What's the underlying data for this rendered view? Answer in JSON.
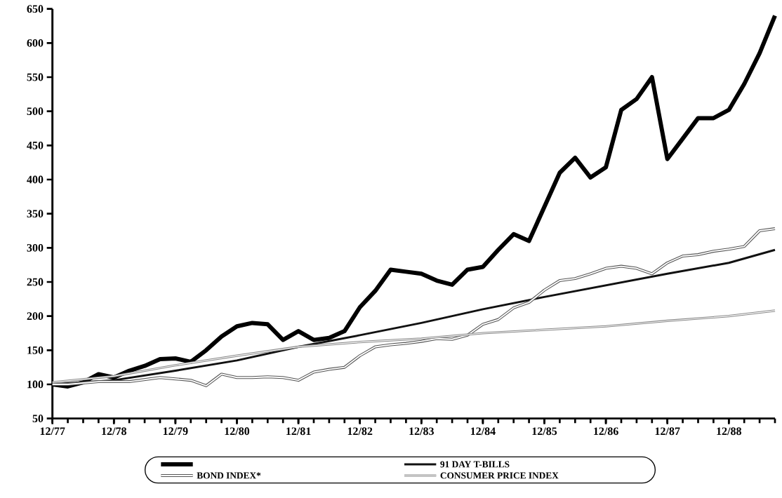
{
  "chart_data": {
    "type": "line",
    "xlim": [
      "1977-12",
      "1989-09"
    ],
    "ylim": [
      50,
      650
    ],
    "xticks": [
      {
        "value": "1977-12",
        "label": "12/77"
      },
      {
        "value": "1978-12",
        "label": "12/78"
      },
      {
        "value": "1979-12",
        "label": "12/79"
      },
      {
        "value": "1980-12",
        "label": "12/80"
      },
      {
        "value": "1981-12",
        "label": "12/81"
      },
      {
        "value": "1982-12",
        "label": "12/82"
      },
      {
        "value": "1983-12",
        "label": "12/83"
      },
      {
        "value": "1984-12",
        "label": "12/84"
      },
      {
        "value": "1985-12",
        "label": "12/85"
      },
      {
        "value": "1986-12",
        "label": "12/86"
      },
      {
        "value": "1987-12",
        "label": "12/87"
      },
      {
        "value": "1988-12",
        "label": "12/88"
      }
    ],
    "yticks": [
      50,
      100,
      150,
      200,
      250,
      300,
      350,
      400,
      450,
      500,
      550,
      600,
      650
    ],
    "legend": "bottom",
    "marker": "none",
    "x": [
      "1977-12",
      "1978-03",
      "1978-06",
      "1978-09",
      "1978-12",
      "1979-03",
      "1979-06",
      "1979-09",
      "1979-12",
      "1980-03",
      "1980-06",
      "1980-09",
      "1980-12",
      "1981-03",
      "1981-06",
      "1981-09",
      "1981-12",
      "1982-03",
      "1982-06",
      "1982-09",
      "1982-12",
      "1983-03",
      "1983-06",
      "1983-09",
      "1983-12",
      "1984-03",
      "1984-06",
      "1984-09",
      "1984-12",
      "1985-03",
      "1985-06",
      "1985-09",
      "1985-12",
      "1986-03",
      "1986-06",
      "1986-09",
      "1986-12",
      "1987-03",
      "1987-06",
      "1987-09",
      "1987-12",
      "1988-03",
      "1988-06",
      "1988-09",
      "1988-12",
      "1989-03",
      "1989-06",
      "1989-09"
    ],
    "series": [
      {
        "color": "#000000",
        "values": [
          100,
          97,
          103,
          115,
          110,
          120,
          127,
          137,
          138,
          133,
          150,
          170,
          185,
          190,
          188,
          165,
          178,
          165,
          168,
          178,
          213,
          237,
          268,
          265,
          262,
          252,
          246,
          268,
          272,
          297,
          320,
          310,
          360,
          410,
          432,
          403,
          418,
          502,
          518,
          550,
          430,
          460,
          490,
          490,
          502,
          540,
          585,
          640
        ]
      },
      {
        "name": "91 DAY T-BILLS",
        "color": "#111111",
        "x": [
          "1977-12",
          "1978-12",
          "1979-12",
          "1980-12",
          "1981-12",
          "1982-12",
          "1983-12",
          "1984-12",
          "1985-12",
          "1986-12",
          "1987-12",
          "1988-12",
          "1989-09"
        ],
        "values": [
          100,
          106,
          120,
          135,
          155,
          172,
          190,
          210,
          228,
          245,
          262,
          278,
          297
        ]
      },
      {
        "name": "BOND INDEX*",
        "color": "#555555",
        "values": [
          100,
          100,
          102,
          104,
          104,
          104,
          107,
          110,
          108,
          106,
          98,
          115,
          110,
          110,
          111,
          110,
          106,
          118,
          122,
          125,
          142,
          155,
          158,
          160,
          163,
          167,
          166,
          172,
          188,
          195,
          212,
          220,
          238,
          252,
          255,
          262,
          270,
          273,
          270,
          262,
          278,
          288,
          290,
          295,
          298,
          302,
          325,
          328
        ]
      },
      {
        "name": "CONSUMER PRICE INDEX",
        "color": "#888888",
        "x": [
          "1977-12",
          "1978-12",
          "1979-12",
          "1980-12",
          "1981-12",
          "1982-12",
          "1983-12",
          "1984-12",
          "1985-12",
          "1986-12",
          "1987-12",
          "1988-12",
          "1989-09"
        ],
        "values": [
          103,
          112,
          128,
          142,
          155,
          162,
          167,
          175,
          180,
          185,
          193,
          200,
          208
        ]
      }
    ]
  }
}
